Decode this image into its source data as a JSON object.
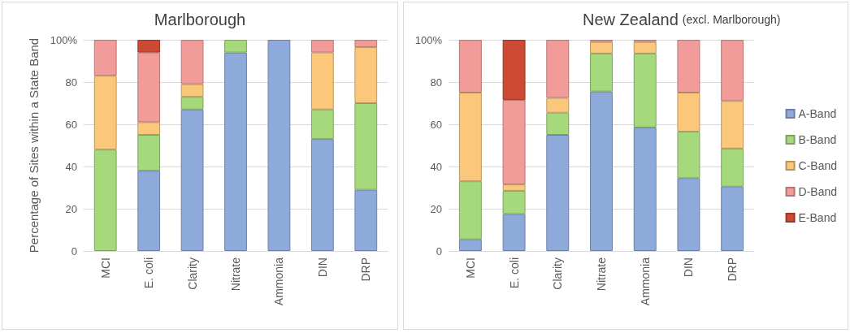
{
  "chart_data": [
    {
      "type": "bar",
      "title": "Marlborough",
      "ylabel": "Percentage of Sites within a State Band",
      "stacked": true,
      "legend": false,
      "grid": "y",
      "categories": [
        "MCI",
        "E. coli",
        "Clarity",
        "Nitrate",
        "Ammonia",
        "DIN",
        "DRP"
      ],
      "ylim": [
        0,
        100
      ],
      "yticks": [
        0,
        20,
        40,
        60,
        80,
        {
          "value": 100,
          "label": "100%"
        }
      ],
      "series": [
        {
          "color": "#8eaadb",
          "values": [
            null,
            38,
            67,
            94,
            100,
            53,
            29
          ]
        },
        {
          "color": "#a6d97c",
          "values": [
            48,
            17,
            6,
            6,
            null,
            14,
            41
          ]
        },
        {
          "color": "#fbc77a",
          "values": [
            35,
            6,
            6,
            null,
            null,
            27,
            26.5
          ]
        },
        {
          "color": "#f19c99",
          "values": [
            17,
            33,
            21,
            null,
            null,
            6,
            3.5
          ]
        },
        {
          "color": "#cc4a33",
          "values": [
            null,
            6,
            null,
            null,
            null,
            null,
            null
          ]
        }
      ]
    },
    {
      "type": "bar",
      "title": "New Zealand",
      "subtitle": "(excl. Marlborough)",
      "stacked": true,
      "legend": "right",
      "grid": "y",
      "categories": [
        "MCI",
        "E. coli",
        "Clarity",
        "Nitrate",
        "Ammonia",
        "DIN",
        "DRP"
      ],
      "ylim": [
        0,
        100
      ],
      "yticks": [
        0,
        20,
        40,
        60,
        80,
        {
          "value": 100,
          "label": "100%"
        }
      ],
      "series": [
        {
          "name": "A-Band",
          "color": "#8eaadb",
          "values": [
            5.5,
            17.5,
            55,
            75.5,
            58.5,
            34.5,
            30.5
          ]
        },
        {
          "name": "B-Band",
          "color": "#a6d97c",
          "values": [
            27.5,
            11,
            10.5,
            18,
            35,
            22,
            18
          ]
        },
        {
          "name": "C-Band",
          "color": "#fbc77a",
          "values": [
            42,
            3,
            7,
            5.5,
            5.5,
            18.5,
            22.5
          ]
        },
        {
          "name": "D-Band",
          "color": "#f19c99",
          "values": [
            25,
            40,
            27.5,
            1,
            1,
            25,
            29
          ]
        },
        {
          "name": "E-Band",
          "color": "#cc4a33",
          "values": [
            null,
            28.5,
            null,
            null,
            null,
            null,
            null
          ]
        }
      ]
    }
  ]
}
